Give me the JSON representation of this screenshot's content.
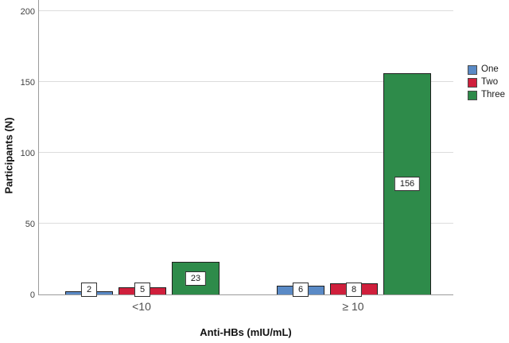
{
  "chart_data": {
    "type": "bar",
    "title": "",
    "xlabel": "Anti-HBs (mIU/mL)",
    "ylabel": "Participants (N)",
    "categories": [
      "<10",
      "≥ 10"
    ],
    "series": [
      {
        "name": "One",
        "color": "#5a8ac6",
        "values": [
          2,
          6
        ]
      },
      {
        "name": "Two",
        "color": "#d01f3c",
        "values": [
          5,
          8
        ]
      },
      {
        "name": "Three",
        "color": "#2e8b4a",
        "values": [
          23,
          156
        ]
      }
    ],
    "bar_labels": [
      [
        2,
        5,
        23
      ],
      [
        6,
        8,
        156
      ]
    ],
    "ylim": [
      0,
      200
    ],
    "yticks": [
      0,
      50,
      100,
      150,
      200
    ],
    "grid": true,
    "legend_position": "right",
    "legend_entries": [
      "One",
      "Two",
      "Three"
    ]
  },
  "style_colors": {
    "bar_border": "#1f1f1f",
    "gridline": "#dcdcdc",
    "axis_line": "#9b9b9b",
    "tick_text": "#404040",
    "label_box_bg": "#ffffff",
    "label_box_border": "#2e2e2e"
  }
}
